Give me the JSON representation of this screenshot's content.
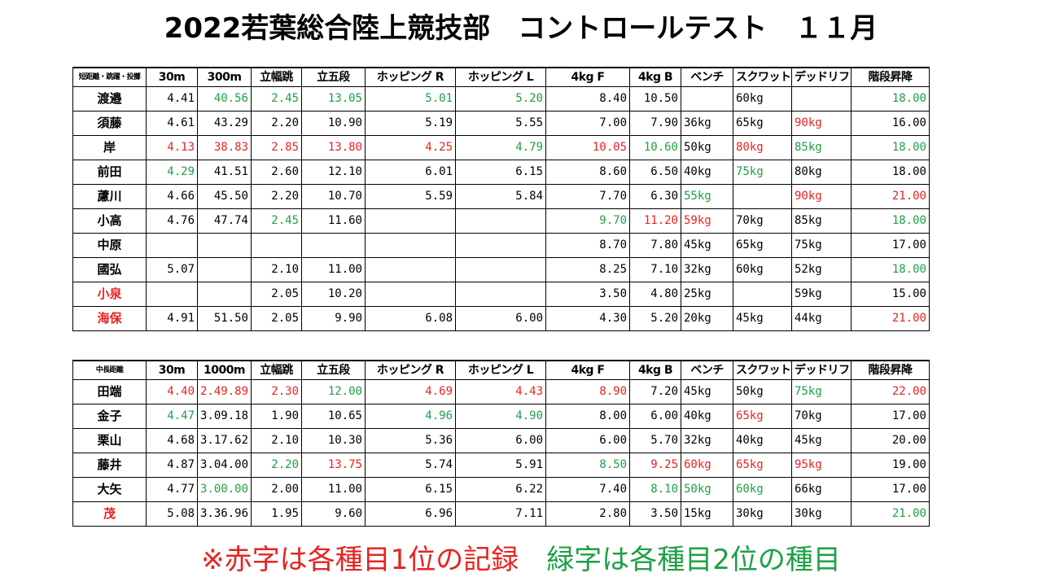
{
  "title": "2022若葉総合陸上競技部　コントロールテスト　１１月",
  "colors": {
    "first": "#e8231f",
    "second": "#1ea045",
    "text": "#000000"
  },
  "sprint_table": {
    "headers": [
      "短距離・跳躍・投擲",
      "30m",
      "300m",
      "立幅跳",
      "立五段",
      "ホッピング R",
      "ホッピング L",
      "4kg F",
      "4kg B",
      "ベンチ",
      "スクワット",
      "デッドリフト",
      "階段昇降"
    ],
    "rows": [
      {
        "name": "渡邉",
        "name_color": "",
        "cells": [
          {
            "v": "4.41",
            "c": ""
          },
          {
            "v": "40.56",
            "c": "green"
          },
          {
            "v": "2.45",
            "c": "green"
          },
          {
            "v": "13.05",
            "c": "green"
          },
          {
            "v": "5.01",
            "c": "green"
          },
          {
            "v": "5.20",
            "c": "green"
          },
          {
            "v": "8.40",
            "c": ""
          },
          {
            "v": "10.50",
            "c": ""
          },
          {
            "v": "",
            "c": ""
          },
          {
            "v": "60kg",
            "c": ""
          },
          {
            "v": "",
            "c": ""
          },
          {
            "v": "18.00",
            "c": "green"
          }
        ]
      },
      {
        "name": "須藤",
        "name_color": "",
        "cells": [
          {
            "v": "4.61",
            "c": ""
          },
          {
            "v": "43.29",
            "c": ""
          },
          {
            "v": "2.20",
            "c": ""
          },
          {
            "v": "10.90",
            "c": ""
          },
          {
            "v": "5.19",
            "c": ""
          },
          {
            "v": "5.55",
            "c": ""
          },
          {
            "v": "7.00",
            "c": ""
          },
          {
            "v": "7.90",
            "c": ""
          },
          {
            "v": "36kg",
            "c": ""
          },
          {
            "v": "65kg",
            "c": ""
          },
          {
            "v": "90kg",
            "c": "red"
          },
          {
            "v": "16.00",
            "c": ""
          }
        ]
      },
      {
        "name": "岸",
        "name_color": "",
        "cells": [
          {
            "v": "4.13",
            "c": "red"
          },
          {
            "v": "38.83",
            "c": "red"
          },
          {
            "v": "2.85",
            "c": "red"
          },
          {
            "v": "13.80",
            "c": "red"
          },
          {
            "v": "4.25",
            "c": "red"
          },
          {
            "v": "4.79",
            "c": "green"
          },
          {
            "v": "10.05",
            "c": "red"
          },
          {
            "v": "10.60",
            "c": "green"
          },
          {
            "v": "50kg",
            "c": ""
          },
          {
            "v": "80kg",
            "c": "red"
          },
          {
            "v": "85kg",
            "c": "green"
          },
          {
            "v": "18.00",
            "c": "green"
          }
        ]
      },
      {
        "name": "前田",
        "name_color": "",
        "cells": [
          {
            "v": "4.29",
            "c": "green"
          },
          {
            "v": "41.51",
            "c": ""
          },
          {
            "v": "2.60",
            "c": ""
          },
          {
            "v": "12.10",
            "c": ""
          },
          {
            "v": "6.01",
            "c": ""
          },
          {
            "v": "6.15",
            "c": ""
          },
          {
            "v": "8.60",
            "c": ""
          },
          {
            "v": "6.50",
            "c": ""
          },
          {
            "v": "40kg",
            "c": ""
          },
          {
            "v": "75kg",
            "c": "green"
          },
          {
            "v": "80kg",
            "c": ""
          },
          {
            "v": "18.00",
            "c": ""
          }
        ]
      },
      {
        "name": "藘川",
        "name_color": "",
        "cells": [
          {
            "v": "4.66",
            "c": ""
          },
          {
            "v": "45.50",
            "c": ""
          },
          {
            "v": "2.20",
            "c": ""
          },
          {
            "v": "10.70",
            "c": ""
          },
          {
            "v": "5.59",
            "c": ""
          },
          {
            "v": "5.84",
            "c": ""
          },
          {
            "v": "7.70",
            "c": ""
          },
          {
            "v": "6.30",
            "c": ""
          },
          {
            "v": "55kg",
            "c": "green"
          },
          {
            "v": "",
            "c": ""
          },
          {
            "v": "90kg",
            "c": "red"
          },
          {
            "v": "21.00",
            "c": "red"
          }
        ]
      },
      {
        "name": "小高",
        "name_color": "",
        "cells": [
          {
            "v": "4.76",
            "c": ""
          },
          {
            "v": "47.74",
            "c": ""
          },
          {
            "v": "2.45",
            "c": "green"
          },
          {
            "v": "11.60",
            "c": ""
          },
          {
            "v": "",
            "c": ""
          },
          {
            "v": "",
            "c": ""
          },
          {
            "v": "9.70",
            "c": "green"
          },
          {
            "v": "11.20",
            "c": "red"
          },
          {
            "v": "59kg",
            "c": "red"
          },
          {
            "v": "70kg",
            "c": ""
          },
          {
            "v": "85kg",
            "c": ""
          },
          {
            "v": "18.00",
            "c": "green"
          }
        ]
      },
      {
        "name": "中原",
        "name_color": "",
        "cells": [
          {
            "v": "",
            "c": ""
          },
          {
            "v": "",
            "c": ""
          },
          {
            "v": "",
            "c": ""
          },
          {
            "v": "",
            "c": ""
          },
          {
            "v": "",
            "c": ""
          },
          {
            "v": "",
            "c": ""
          },
          {
            "v": "8.70",
            "c": ""
          },
          {
            "v": "7.80",
            "c": ""
          },
          {
            "v": "45kg",
            "c": ""
          },
          {
            "v": "65kg",
            "c": ""
          },
          {
            "v": "75kg",
            "c": ""
          },
          {
            "v": "17.00",
            "c": ""
          }
        ]
      },
      {
        "name": "國弘",
        "name_color": "",
        "cells": [
          {
            "v": "5.07",
            "c": ""
          },
          {
            "v": "",
            "c": ""
          },
          {
            "v": "2.10",
            "c": ""
          },
          {
            "v": "11.00",
            "c": ""
          },
          {
            "v": "",
            "c": ""
          },
          {
            "v": "",
            "c": ""
          },
          {
            "v": "8.25",
            "c": ""
          },
          {
            "v": "7.10",
            "c": ""
          },
          {
            "v": "32kg",
            "c": ""
          },
          {
            "v": "60kg",
            "c": ""
          },
          {
            "v": "52kg",
            "c": ""
          },
          {
            "v": "18.00",
            "c": "green"
          }
        ]
      },
      {
        "name": "小泉",
        "name_color": "red",
        "cells": [
          {
            "v": "",
            "c": ""
          },
          {
            "v": "",
            "c": ""
          },
          {
            "v": "2.05",
            "c": ""
          },
          {
            "v": "10.20",
            "c": ""
          },
          {
            "v": "",
            "c": ""
          },
          {
            "v": "",
            "c": ""
          },
          {
            "v": "3.50",
            "c": ""
          },
          {
            "v": "4.80",
            "c": ""
          },
          {
            "v": "25kg",
            "c": ""
          },
          {
            "v": "",
            "c": ""
          },
          {
            "v": "59kg",
            "c": ""
          },
          {
            "v": "15.00",
            "c": ""
          }
        ]
      },
      {
        "name": "海保",
        "name_color": "red",
        "cells": [
          {
            "v": "4.91",
            "c": ""
          },
          {
            "v": "51.50",
            "c": ""
          },
          {
            "v": "2.05",
            "c": ""
          },
          {
            "v": "9.90",
            "c": ""
          },
          {
            "v": "6.08",
            "c": ""
          },
          {
            "v": "6.00",
            "c": ""
          },
          {
            "v": "4.30",
            "c": ""
          },
          {
            "v": "5.20",
            "c": ""
          },
          {
            "v": "20kg",
            "c": ""
          },
          {
            "v": "45kg",
            "c": ""
          },
          {
            "v": "44kg",
            "c": ""
          },
          {
            "v": "21.00",
            "c": "red"
          }
        ]
      }
    ]
  },
  "distance_table": {
    "headers": [
      "中長距離",
      "30m",
      "1000m",
      "立幅跳",
      "立五段",
      "ホッピング R",
      "ホッピング L",
      "4kg F",
      "4kg B",
      "ベンチ",
      "スクワット",
      "デッドリフト",
      "階段昇降"
    ],
    "rows": [
      {
        "name": "田端",
        "name_color": "",
        "cells": [
          {
            "v": "4.40",
            "c": "red"
          },
          {
            "v": "2.49.89",
            "c": "red"
          },
          {
            "v": "2.30",
            "c": "red"
          },
          {
            "v": "12.00",
            "c": "green"
          },
          {
            "v": "4.69",
            "c": "red"
          },
          {
            "v": "4.43",
            "c": "red"
          },
          {
            "v": "8.90",
            "c": "red"
          },
          {
            "v": "7.20",
            "c": ""
          },
          {
            "v": "45kg",
            "c": ""
          },
          {
            "v": "50kg",
            "c": ""
          },
          {
            "v": "75kg",
            "c": "green"
          },
          {
            "v": "22.00",
            "c": "red"
          }
        ]
      },
      {
        "name": "金子",
        "name_color": "",
        "cells": [
          {
            "v": "4.47",
            "c": "green"
          },
          {
            "v": "3.09.18",
            "c": ""
          },
          {
            "v": "1.90",
            "c": ""
          },
          {
            "v": "10.65",
            "c": ""
          },
          {
            "v": "4.96",
            "c": "green"
          },
          {
            "v": "4.90",
            "c": "green"
          },
          {
            "v": "8.00",
            "c": ""
          },
          {
            "v": "6.00",
            "c": ""
          },
          {
            "v": "40kg",
            "c": ""
          },
          {
            "v": "65kg",
            "c": "red"
          },
          {
            "v": "70kg",
            "c": ""
          },
          {
            "v": "17.00",
            "c": ""
          }
        ]
      },
      {
        "name": "栗山",
        "name_color": "",
        "cells": [
          {
            "v": "4.68",
            "c": ""
          },
          {
            "v": "3.17.62",
            "c": ""
          },
          {
            "v": "2.10",
            "c": ""
          },
          {
            "v": "10.30",
            "c": ""
          },
          {
            "v": "5.36",
            "c": ""
          },
          {
            "v": "6.00",
            "c": ""
          },
          {
            "v": "6.00",
            "c": ""
          },
          {
            "v": "5.70",
            "c": ""
          },
          {
            "v": "32kg",
            "c": ""
          },
          {
            "v": "40kg",
            "c": ""
          },
          {
            "v": "45kg",
            "c": ""
          },
          {
            "v": "20.00",
            "c": ""
          }
        ]
      },
      {
        "name": "藤井",
        "name_color": "",
        "cells": [
          {
            "v": "4.87",
            "c": ""
          },
          {
            "v": "3.04.00",
            "c": ""
          },
          {
            "v": "2.20",
            "c": "green"
          },
          {
            "v": "13.75",
            "c": "red"
          },
          {
            "v": "5.74",
            "c": ""
          },
          {
            "v": "5.91",
            "c": ""
          },
          {
            "v": "8.50",
            "c": "green"
          },
          {
            "v": "9.25",
            "c": "red"
          },
          {
            "v": "60kg",
            "c": "red"
          },
          {
            "v": "65kg",
            "c": "red"
          },
          {
            "v": "95kg",
            "c": "red"
          },
          {
            "v": "19.00",
            "c": ""
          }
        ]
      },
      {
        "name": "大矢",
        "name_color": "",
        "cells": [
          {
            "v": "4.77",
            "c": ""
          },
          {
            "v": "3.00.00",
            "c": "green"
          },
          {
            "v": "2.00",
            "c": ""
          },
          {
            "v": "11.00",
            "c": ""
          },
          {
            "v": "6.15",
            "c": ""
          },
          {
            "v": "6.22",
            "c": ""
          },
          {
            "v": "7.40",
            "c": ""
          },
          {
            "v": "8.10",
            "c": "green"
          },
          {
            "v": "50kg",
            "c": "green"
          },
          {
            "v": "60kg",
            "c": "green"
          },
          {
            "v": "66kg",
            "c": ""
          },
          {
            "v": "17.00",
            "c": ""
          }
        ]
      },
      {
        "name": "茂",
        "name_color": "red",
        "cells": [
          {
            "v": "5.08",
            "c": ""
          },
          {
            "v": "3.36.96",
            "c": ""
          },
          {
            "v": "1.95",
            "c": ""
          },
          {
            "v": "9.60",
            "c": ""
          },
          {
            "v": "6.96",
            "c": ""
          },
          {
            "v": "7.11",
            "c": ""
          },
          {
            "v": "2.80",
            "c": ""
          },
          {
            "v": "3.50",
            "c": ""
          },
          {
            "v": "15kg",
            "c": ""
          },
          {
            "v": "30kg",
            "c": ""
          },
          {
            "v": "30kg",
            "c": ""
          },
          {
            "v": "21.00",
            "c": "green"
          }
        ]
      }
    ]
  },
  "footnote": {
    "red_part": "※赤字は各種目1位の記録",
    "separator": "　",
    "green_part": "緑字は各種目2位の種目"
  }
}
